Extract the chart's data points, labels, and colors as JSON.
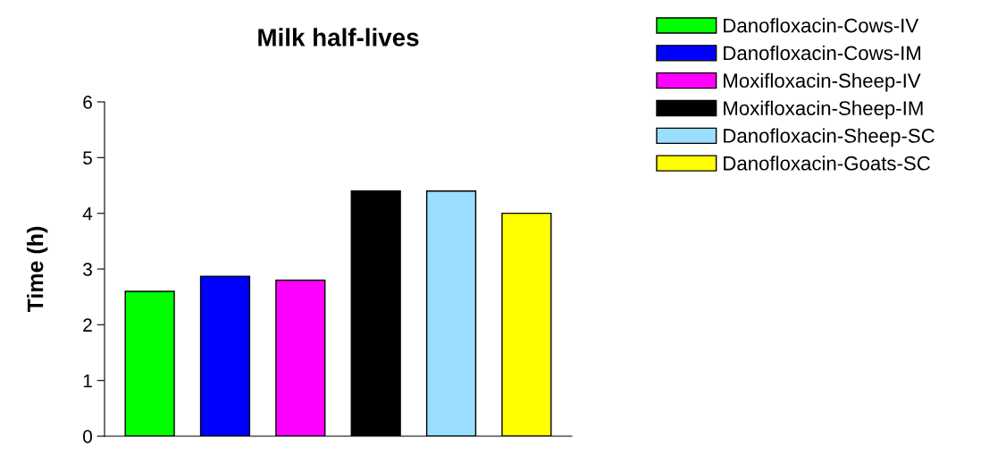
{
  "chart_data": {
    "type": "bar",
    "title": "Milk half-lives",
    "ylabel": "Time (h)",
    "categories": [
      null,
      null,
      null,
      null,
      null,
      null
    ],
    "series": [
      {
        "name": "Danofloxacin-Cows-IV",
        "color": "#00ff00",
        "values": [
          2.6,
          null,
          null,
          null,
          null,
          null
        ]
      },
      {
        "name": "Danofloxacin-Cows-IM",
        "color": "#0000ff",
        "values": [
          null,
          2.87,
          null,
          null,
          null,
          null
        ]
      },
      {
        "name": "Moxifloxacin-Sheep-IV",
        "color": "#ff00ff",
        "values": [
          null,
          null,
          2.8,
          null,
          null,
          null
        ]
      },
      {
        "name": "Moxifloxacin-Sheep-IM",
        "color": "#000000",
        "values": [
          null,
          null,
          null,
          4.4,
          null,
          null
        ]
      },
      {
        "name": "Danofloxacin-Sheep-SC",
        "color": "#99ddff",
        "values": [
          null,
          null,
          null,
          null,
          4.4,
          null
        ]
      },
      {
        "name": "Danofloxacin-Goats-SC",
        "color": "#ffff00",
        "values": [
          null,
          null,
          null,
          null,
          null,
          4.0
        ]
      }
    ],
    "ylim": [
      0,
      6
    ],
    "yticks": [
      0,
      1,
      2,
      3,
      4,
      5,
      6
    ],
    "grid": false,
    "legend": "top right"
  }
}
